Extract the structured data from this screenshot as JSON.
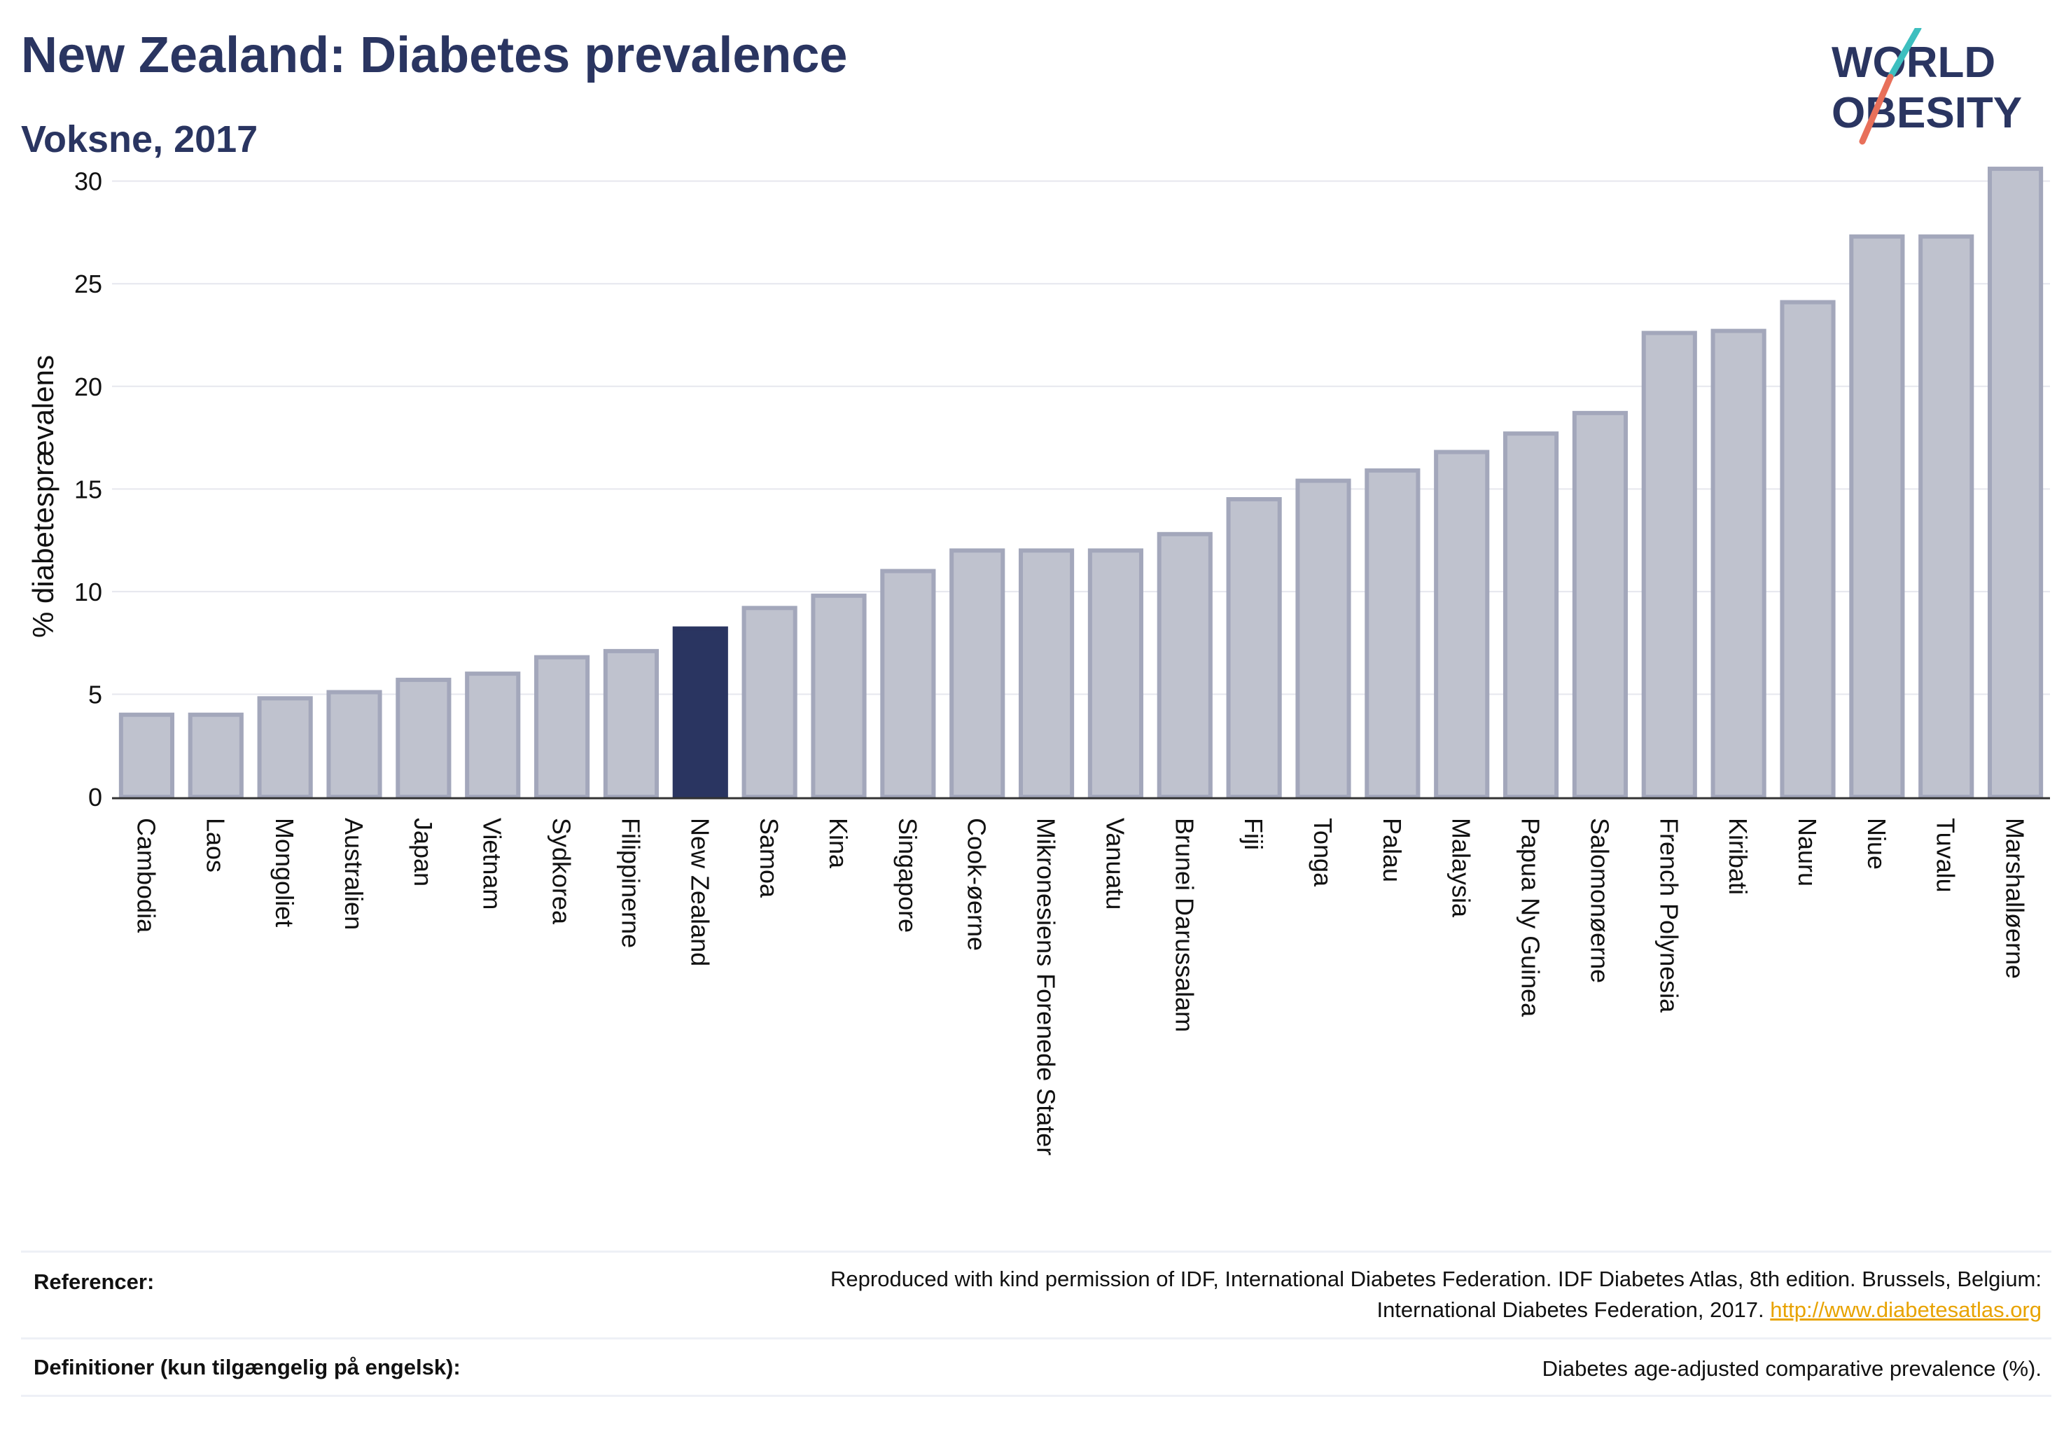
{
  "header": {
    "title": "New Zealand: Diabetes prevalence",
    "subtitle": "Voksne, 2017"
  },
  "logo": {
    "line1": "WORLD",
    "line2": "OBESITY",
    "accent_teal": "#3dbfbf",
    "accent_coral": "#e8705a",
    "text_color": "#2a3561"
  },
  "colors": {
    "bar_fill": "#bfc2ce",
    "bar_stroke": "#a3a7bb",
    "highlight_fill": "#2a3561",
    "grid": "#e6e7ee",
    "axis": "#333333"
  },
  "chart_data": {
    "type": "bar",
    "title": "New Zealand: Diabetes prevalence",
    "subtitle": "Voksne, 2017",
    "ylabel": "% diabetesprævalens",
    "xlabel": "",
    "ylim": [
      0,
      32
    ],
    "yticks": [
      0,
      5,
      10,
      15,
      20,
      25,
      30
    ],
    "grid": true,
    "highlight": "New Zealand",
    "categories": [
      "Cambodia",
      "Laos",
      "Mongoliet",
      "Australien",
      "Japan",
      "Vietnam",
      "Sydkorea",
      "Filippinerne",
      "New Zealand",
      "Samoa",
      "Kina",
      "Singapore",
      "Cook-øerne",
      "Mikronesiens Forenede Stater",
      "Vanuatu",
      "Brunei Darussalam",
      "Fiji",
      "Tonga",
      "Palau",
      "Malaysia",
      "Papua Ny Guinea",
      "Salomonøerne",
      "French Polynesia",
      "Kiribati",
      "Nauru",
      "Niue",
      "Tuvalu",
      "Marshalløerne"
    ],
    "values": [
      4.0,
      4.0,
      4.8,
      5.1,
      5.7,
      6.0,
      6.8,
      7.1,
      8.2,
      9.2,
      9.8,
      11.0,
      12.0,
      12.0,
      12.0,
      12.8,
      14.5,
      15.4,
      15.9,
      16.8,
      17.7,
      18.7,
      22.6,
      22.7,
      24.1,
      27.3,
      27.3,
      30.6
    ]
  },
  "references": {
    "label": "Referencer:",
    "line1": "Reproduced with kind permission of IDF, International Diabetes Federation. IDF Diabetes Atlas, 8th edition. Brussels, Belgium:",
    "line2": "International Diabetes Federation, 2017.",
    "link": "http://www.diabetesatlas.org"
  },
  "definitions": {
    "label": "Definitioner (kun tilgængelig på engelsk):",
    "text": "Diabetes age-adjusted comparative prevalence (%)."
  }
}
